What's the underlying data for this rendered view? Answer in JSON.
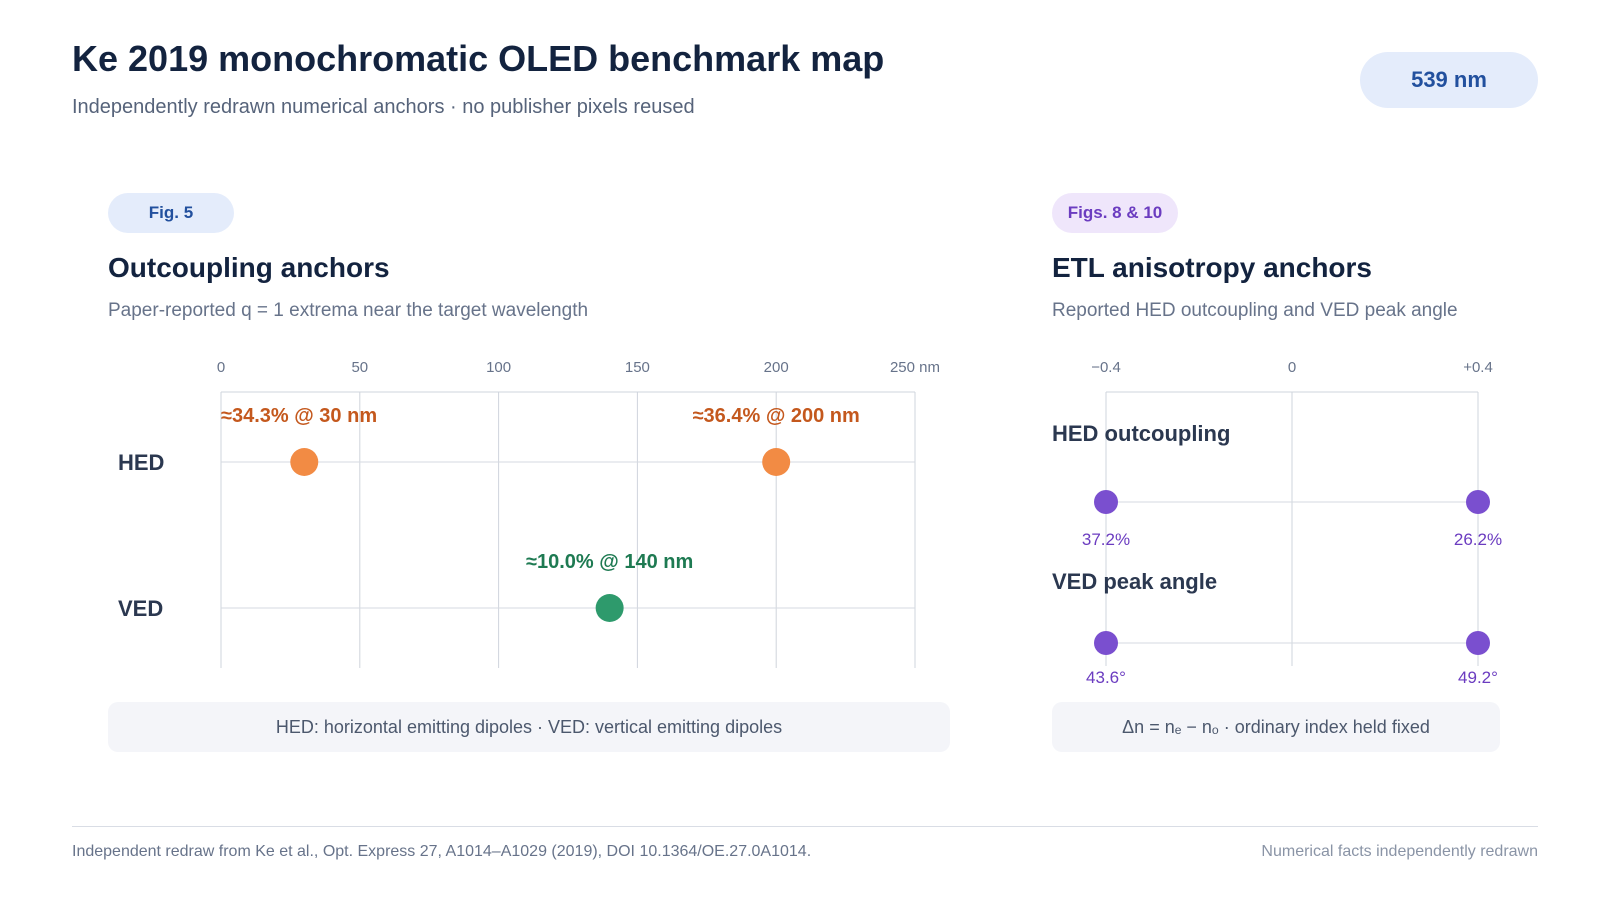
{
  "header": {
    "title": "Ke 2019 monochromatic OLED benchmark map",
    "subtitle": "Independently redrawn numerical anchors · no publisher pixels reused",
    "wavelength_badge": "539 nm"
  },
  "colors": {
    "hed_orange": "#f28b44",
    "hed_label": "#c4581d",
    "ved_green": "#2e9a6c",
    "ved_label": "#1e7a52",
    "purple": "#7a4fcf",
    "purple_label": "#6b3cc0",
    "accent_blue": "#22509e"
  },
  "left_panel": {
    "tag": "Fig. 5",
    "title": "Outcoupling anchors",
    "subtitle": "Paper-reported q = 1 extrema near the target wavelength",
    "note": "HED: horizontal emitting dipoles · VED: vertical emitting dipoles"
  },
  "right_panel": {
    "tag": "Figs. 8 & 10",
    "title": "ETL anisotropy anchors",
    "subtitle": "Reported HED outcoupling and VED peak angle",
    "note": "Δn = nₑ − nₒ · ordinary index held fixed"
  },
  "chart_data": [
    {
      "type": "scatter",
      "x_unit": "nm",
      "xlim": [
        0,
        250
      ],
      "x_ticks": [
        0,
        50,
        100,
        150,
        200,
        250
      ],
      "x_tick_labels": [
        "0",
        "50",
        "100",
        "150",
        "200",
        "250 nm"
      ],
      "rows": [
        "HED",
        "VED"
      ],
      "grid": true,
      "points": [
        {
          "row": "HED",
          "x": 30,
          "value_pct": 34.3,
          "label": "≈34.3% @ 30 nm"
        },
        {
          "row": "HED",
          "x": 200,
          "value_pct": 36.4,
          "label": "≈36.4% @ 200 nm"
        },
        {
          "row": "VED",
          "x": 140,
          "value_pct": 10.0,
          "label": "≈10.0% @ 140 nm"
        }
      ]
    },
    {
      "type": "scatter",
      "xlim": [
        -0.4,
        0.4
      ],
      "x_ticks": [
        -0.4,
        0,
        0.4
      ],
      "x_tick_labels": [
        "−0.4",
        "0",
        "+0.4"
      ],
      "grid": true,
      "rows": [
        {
          "name": "HED outcoupling",
          "points": [
            {
              "x": -0.4,
              "value": 37.2,
              "label": "37.2%"
            },
            {
              "x": 0.4,
              "value": 26.2,
              "label": "26.2%"
            }
          ]
        },
        {
          "name": "VED peak angle",
          "points": [
            {
              "x": -0.4,
              "value": 43.6,
              "label": "43.6°"
            },
            {
              "x": 0.4,
              "value": 49.2,
              "label": "49.2°"
            }
          ]
        }
      ]
    }
  ],
  "footer": {
    "citation": "Independent redraw from Ke et al., Opt. Express 27, A1014–A1029 (2019), DOI 10.1364/OE.27.0A1014.",
    "note": "Numerical facts independently redrawn"
  }
}
